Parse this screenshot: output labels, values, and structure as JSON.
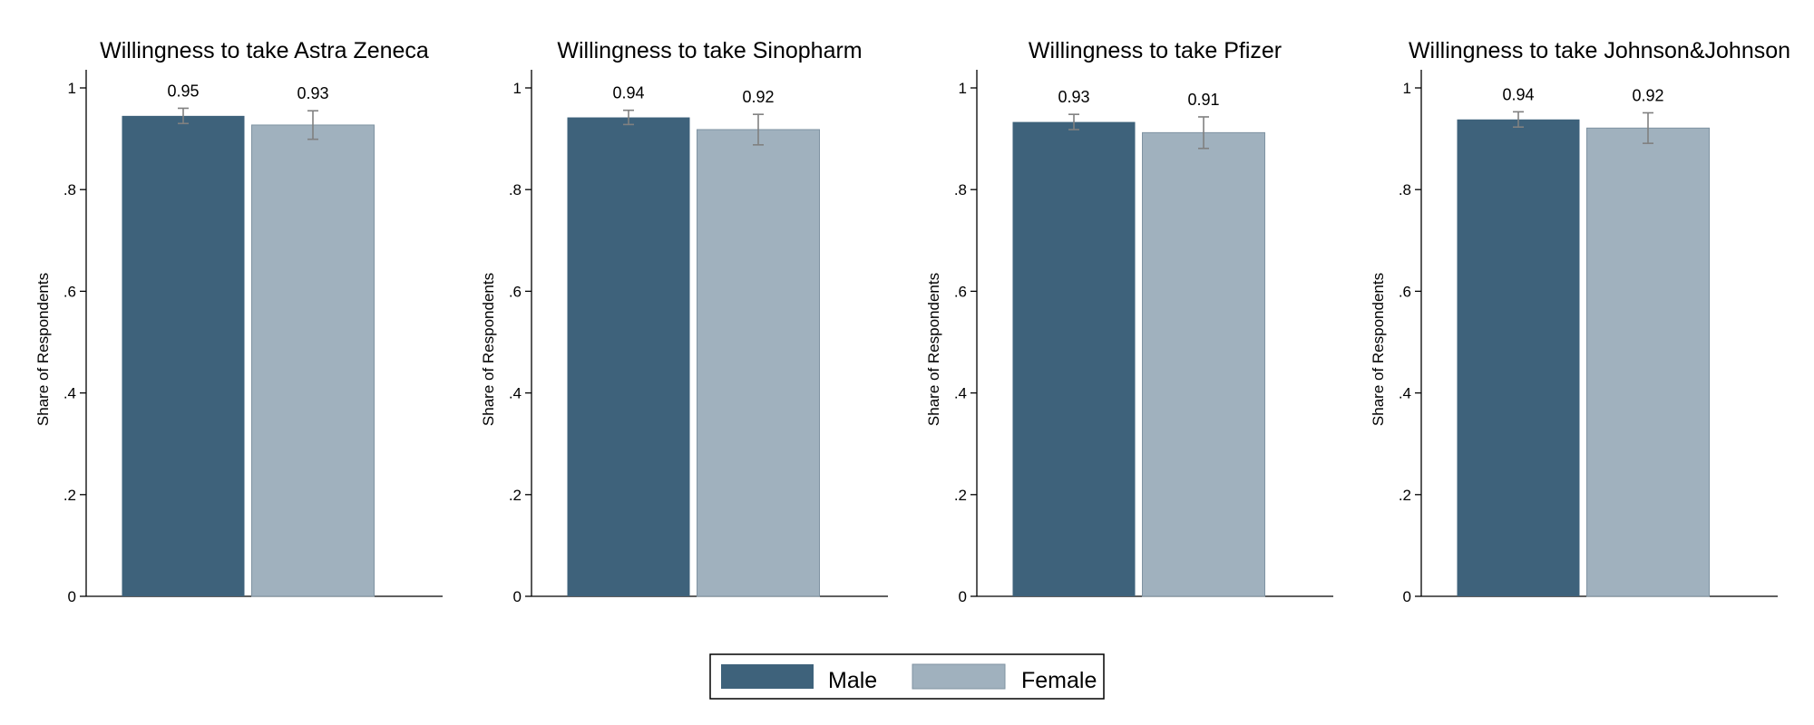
{
  "chart_data": [
    {
      "type": "bar",
      "title": "Willingness to take Astra Zeneca",
      "ylabel": "Share of Respondents",
      "ylim": [
        0,
        1
      ],
      "yticks": [
        0,
        0.2,
        0.4,
        0.6,
        0.8,
        1
      ],
      "ytick_labels": [
        "0",
        ".2",
        ".4",
        ".6",
        ".8",
        "1"
      ],
      "series": [
        {
          "name": "Male",
          "values": [
            0.945
          ],
          "error": [
            0.015
          ],
          "label": "0.95"
        },
        {
          "name": "Female",
          "values": [
            0.927
          ],
          "error": [
            0.028
          ],
          "label": "0.93"
        }
      ]
    },
    {
      "type": "bar",
      "title": "Willingness to take Sinopharm",
      "ylabel": "Share of Respondents",
      "ylim": [
        0,
        1
      ],
      "yticks": [
        0,
        0.2,
        0.4,
        0.6,
        0.8,
        1
      ],
      "ytick_labels": [
        "0",
        ".2",
        ".4",
        ".6",
        ".8",
        "1"
      ],
      "series": [
        {
          "name": "Male",
          "values": [
            0.942
          ],
          "error": [
            0.014
          ],
          "label": "0.94"
        },
        {
          "name": "Female",
          "values": [
            0.918
          ],
          "error": [
            0.03
          ],
          "label": "0.92"
        }
      ]
    },
    {
      "type": "bar",
      "title": "Willingness to take Pfizer",
      "ylabel": "Share of Respondents",
      "ylim": [
        0,
        1
      ],
      "yticks": [
        0,
        0.2,
        0.4,
        0.6,
        0.8,
        1
      ],
      "ytick_labels": [
        "0",
        ".2",
        ".4",
        ".6",
        ".8",
        "1"
      ],
      "series": [
        {
          "name": "Male",
          "values": [
            0.933
          ],
          "error": [
            0.015
          ],
          "label": "0.93"
        },
        {
          "name": "Female",
          "values": [
            0.912
          ],
          "error": [
            0.031
          ],
          "label": "0.91"
        }
      ]
    },
    {
      "type": "bar",
      "title": "Willingness to take Johnson&Johnson",
      "ylabel": "Share of Respondents",
      "ylim": [
        0,
        1
      ],
      "yticks": [
        0,
        0.2,
        0.4,
        0.6,
        0.8,
        1
      ],
      "ytick_labels": [
        "0",
        ".2",
        ".4",
        ".6",
        ".8",
        "1"
      ],
      "series": [
        {
          "name": "Male",
          "values": [
            0.938
          ],
          "error": [
            0.015
          ],
          "label": "0.94"
        },
        {
          "name": "Female",
          "values": [
            0.921
          ],
          "error": [
            0.03
          ],
          "label": "0.92"
        }
      ]
    }
  ],
  "legend": {
    "placement": "bottom-center",
    "items": [
      {
        "label": "Male",
        "color": "#3e627b"
      },
      {
        "label": "Female",
        "color": "#a0b1be"
      }
    ]
  },
  "colors": {
    "male": "#3e627b",
    "female": "#a0b1be",
    "female_border": "#7f93a2",
    "error_bar": "#808080"
  }
}
